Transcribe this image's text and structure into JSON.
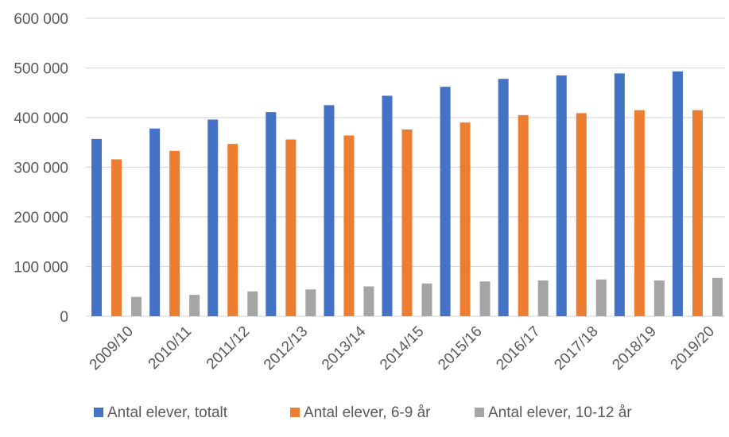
{
  "chart_data": {
    "type": "bar",
    "categories": [
      "2009/10",
      "2010/11",
      "2011/12",
      "2012/13",
      "2013/14",
      "2014/15",
      "2015/16",
      "2016/17",
      "2017/18",
      "2018/19",
      "2019/20"
    ],
    "series": [
      {
        "name": "Antal elever, totalt",
        "color": "#4472C4",
        "values": [
          357000,
          378000,
          396000,
          411000,
          425000,
          444000,
          462000,
          478000,
          485000,
          489000,
          493000
        ]
      },
      {
        "name": "Antal elever, 6-9 år",
        "color": "#ED7D31",
        "values": [
          316000,
          333000,
          347000,
          356000,
          364000,
          376000,
          390000,
          405000,
          409000,
          415000,
          415000
        ]
      },
      {
        "name": "Antal elever, 10-12 år",
        "color": "#A5A5A5",
        "values": [
          39000,
          43000,
          50000,
          54000,
          60000,
          66000,
          70000,
          72000,
          74000,
          72000,
          77000
        ]
      }
    ],
    "y_ticks": [
      "0",
      "100 000",
      "200 000",
      "300 000",
      "400 000",
      "500 000",
      "600 000"
    ],
    "ylim": [
      0,
      600000
    ],
    "grid": true,
    "legend_position": "bottom",
    "gridline_color": "#D9D9D9"
  }
}
